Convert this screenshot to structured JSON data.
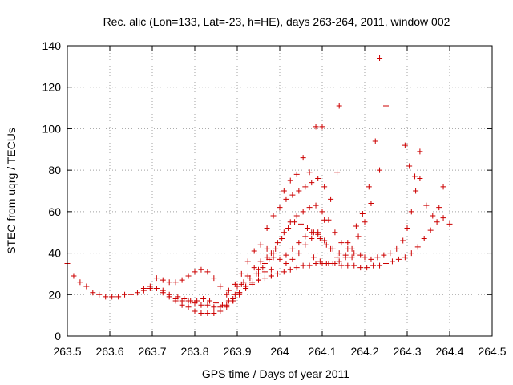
{
  "chart_data": {
    "type": "scatter",
    "title": "Rec. alic (Lon=133, Lat=-23, h=HE), days 263-264, 2011, window 002",
    "xlabel": "GPS time / Days of year 2011",
    "ylabel": "STEC from uqrg / TECUs",
    "xlim": [
      263.5,
      264.5
    ],
    "ylim": [
      0,
      140
    ],
    "xticks": [
      263.5,
      263.6,
      263.7,
      263.8,
      263.9,
      264,
      264.1,
      264.2,
      264.3,
      264.4,
      264.5
    ],
    "xtick_labels": [
      "263.5",
      "263.6",
      "263.7",
      "263.8",
      "263.9",
      "264",
      "264.1",
      "264.2",
      "264.3",
      "264.4",
      "264.5"
    ],
    "yticks": [
      0,
      20,
      40,
      60,
      80,
      100,
      120,
      140
    ],
    "ytick_labels": [
      "0",
      "20",
      "40",
      "60",
      "80",
      "100",
      "120",
      "140"
    ],
    "grid": true,
    "marker": "+",
    "color": "#cc0000",
    "series": [
      {
        "x": [
          263.5,
          263.515,
          263.53,
          263.545,
          263.56,
          263.575,
          263.59,
          263.605,
          263.62,
          263.635,
          263.65,
          263.665,
          263.68,
          263.695,
          263.71,
          263.725,
          263.74,
          263.755,
          263.77,
          263.785,
          263.8,
          263.815,
          263.83,
          263.845,
          263.86,
          263.875,
          263.89,
          263.905,
          263.92,
          263.935,
          263.95,
          263.965,
          263.98,
          263.995,
          264.01,
          264.025,
          264.04,
          264.055,
          264.07,
          264.085,
          264.1,
          264.115,
          264.13,
          264.145,
          264.16,
          264.175,
          264.19,
          264.205,
          264.22,
          264.235,
          264.25,
          264.265,
          264.28,
          264.295,
          264.31,
          264.325,
          264.34,
          264.355,
          264.37,
          264.385,
          264.4
        ],
        "y": [
          35,
          29,
          26,
          24,
          21,
          20,
          19,
          19,
          19,
          20,
          20,
          21,
          22,
          23,
          23,
          22,
          20,
          17,
          15,
          14,
          12,
          11,
          11,
          11,
          12,
          14,
          17,
          21,
          24,
          26,
          27,
          28,
          29,
          30,
          31,
          32,
          33,
          34,
          34,
          35,
          35,
          35,
          35,
          34,
          34,
          34,
          33,
          33,
          34,
          34,
          35,
          36,
          37,
          38,
          40,
          43,
          47,
          51,
          55,
          57,
          54
        ]
      },
      {
        "x": [
          263.68,
          263.695,
          263.71,
          263.725,
          263.74,
          263.755,
          263.77,
          263.785,
          263.8,
          263.815,
          263.83,
          263.845,
          263.86,
          263.875,
          263.89,
          263.905,
          263.92,
          263.935,
          263.95,
          263.965,
          263.98
        ],
        "y": [
          23,
          24,
          23,
          21,
          19,
          18,
          17,
          17,
          16,
          15,
          15,
          14,
          14,
          15,
          18,
          21,
          24,
          25,
          27,
          28,
          29
        ]
      },
      {
        "x": [
          263.71,
          263.725,
          263.74,
          263.755,
          263.77,
          263.785,
          263.8,
          263.815,
          263.83,
          263.845,
          263.86,
          263.875,
          263.89,
          263.905,
          263.92,
          263.935,
          263.95,
          263.965,
          263.98
        ],
        "y": [
          28,
          27,
          26,
          26,
          27,
          29,
          31,
          32,
          31,
          28,
          24,
          20,
          17,
          20,
          23,
          26,
          30,
          31,
          32
        ]
      },
      {
        "x": [
          263.76,
          263.775,
          263.79,
          263.805,
          263.82,
          263.835,
          263.85,
          263.865,
          263.88,
          263.895,
          263.91,
          263.925,
          263.94,
          263.955,
          263.97,
          263.985
        ],
        "y": [
          19,
          18,
          17,
          17,
          18,
          17,
          16,
          15,
          17,
          20,
          25,
          29,
          33,
          36,
          38,
          40
        ]
      },
      {
        "x": [
          263.88,
          263.895,
          263.91,
          263.925,
          263.94,
          263.955,
          263.97,
          263.985,
          264.0,
          264.015,
          264.03,
          264.045,
          264.06,
          264.075,
          264.09,
          264.105,
          264.12,
          264.135
        ],
        "y": [
          22,
          25,
          30,
          36,
          41,
          44,
          42,
          38,
          37,
          39,
          42,
          45,
          48,
          50,
          49,
          46,
          42,
          38
        ]
      },
      {
        "x": [
          263.9,
          263.915,
          263.93,
          263.945,
          263.96,
          263.975,
          263.99,
          264.005,
          264.02,
          264.035,
          264.05,
          264.065,
          264.08,
          264.095,
          264.11,
          264.125,
          264.14,
          264.155,
          264.17
        ],
        "y": [
          24,
          26,
          28,
          30,
          33,
          37,
          42,
          47,
          52,
          55,
          54,
          52,
          50,
          47,
          44,
          42,
          40,
          39,
          38
        ]
      },
      {
        "x": [
          263.95,
          263.965,
          263.98,
          263.995,
          264.01,
          264.025,
          264.04,
          264.055,
          264.07,
          264.085,
          264.1,
          264.115,
          264.13,
          264.145,
          264.16,
          264.175,
          264.19
        ],
        "y": [
          32,
          35,
          40,
          45,
          50,
          55,
          58,
          60,
          62,
          63,
          60,
          56,
          50,
          45,
          42,
          40,
          39
        ]
      },
      {
        "x": [
          263.97,
          263.985,
          264.0,
          264.015,
          264.03,
          264.045,
          264.06,
          264.075,
          264.09,
          264.105
        ],
        "y": [
          52,
          58,
          62,
          66,
          68,
          70,
          72,
          74,
          76,
          72
        ]
      },
      {
        "x": [
          264.01,
          264.025,
          264.04,
          264.055,
          264.07,
          264.085,
          264.1
        ],
        "y": [
          70,
          75,
          78,
          86,
          79,
          101,
          101
        ]
      },
      {
        "x": [
          264.015,
          264.03,
          264.045,
          264.06,
          264.075,
          264.09,
          264.105,
          264.12,
          264.135
        ],
        "y": [
          35,
          37,
          40,
          44,
          47,
          50,
          56,
          66,
          79
        ]
      },
      {
        "x": [
          264.08,
          264.095,
          264.11,
          264.125,
          264.14,
          264.155,
          264.17,
          264.185,
          264.2,
          264.215
        ],
        "y": [
          38,
          36,
          35,
          35,
          36,
          38,
          42,
          48,
          55,
          64
        ]
      },
      {
        "x": [
          264.14,
          264.16,
          264.18,
          264.195,
          264.21,
          264.225,
          264.235,
          264.25
        ],
        "y": [
          111,
          45,
          53,
          59,
          72,
          94,
          80,
          111
        ]
      },
      {
        "x": [
          264.2,
          264.215,
          264.23,
          264.245,
          264.26,
          264.275,
          264.29,
          264.3,
          264.31,
          264.32,
          264.33,
          264.345,
          264.36,
          264.375,
          264.385
        ],
        "y": [
          38,
          37,
          38,
          39,
          40,
          42,
          46,
          52,
          60,
          70,
          76,
          63,
          58,
          62,
          72
        ]
      },
      {
        "x": [
          264.235,
          264.295,
          264.305,
          264.318,
          264.33
        ],
        "y": [
          134,
          92,
          82,
          77,
          89
        ]
      }
    ]
  }
}
